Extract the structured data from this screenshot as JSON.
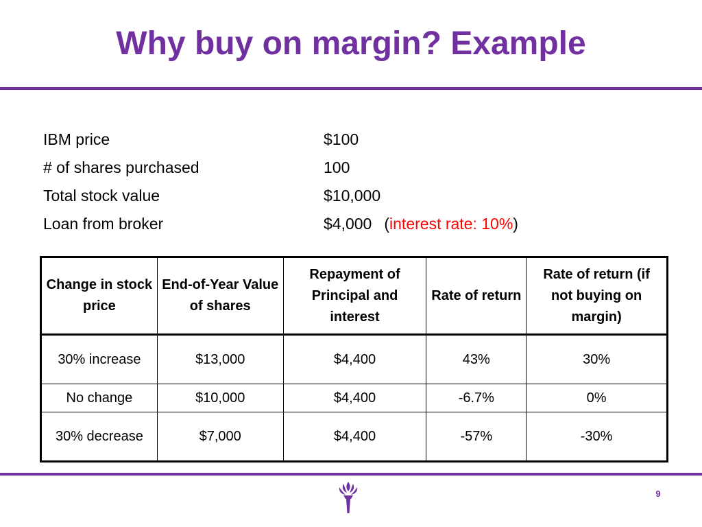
{
  "slide": {
    "title": "Why buy on margin? Example",
    "page_number": "9",
    "accent_color": "#7030a0",
    "highlight_color": "#ff0000",
    "logo_icon": "nyu-torch-icon"
  },
  "facts": [
    {
      "label": "IBM price",
      "value": "$100"
    },
    {
      "label": "# of shares purchased",
      "value": "100"
    },
    {
      "label": "Total stock value",
      "value": "$10,000"
    },
    {
      "label": "Loan from broker",
      "value": "$4,000",
      "note_open": "(",
      "note": "interest rate: 10%",
      "note_close": ")"
    }
  ],
  "table": {
    "headers": [
      "Change in stock price",
      "End-of-Year Value of shares",
      "Repayment of Principal and interest",
      "Rate of return",
      "Rate of return (if not buying on margin)"
    ],
    "rows": [
      [
        "30% increase",
        "$13,000",
        "$4,400",
        "43%",
        "30%"
      ],
      [
        "No change",
        "$10,000",
        "$4,400",
        "-6.7%",
        "0%"
      ],
      [
        "30% decrease",
        "$7,000",
        "$4,400",
        "-57%",
        "-30%"
      ]
    ]
  }
}
